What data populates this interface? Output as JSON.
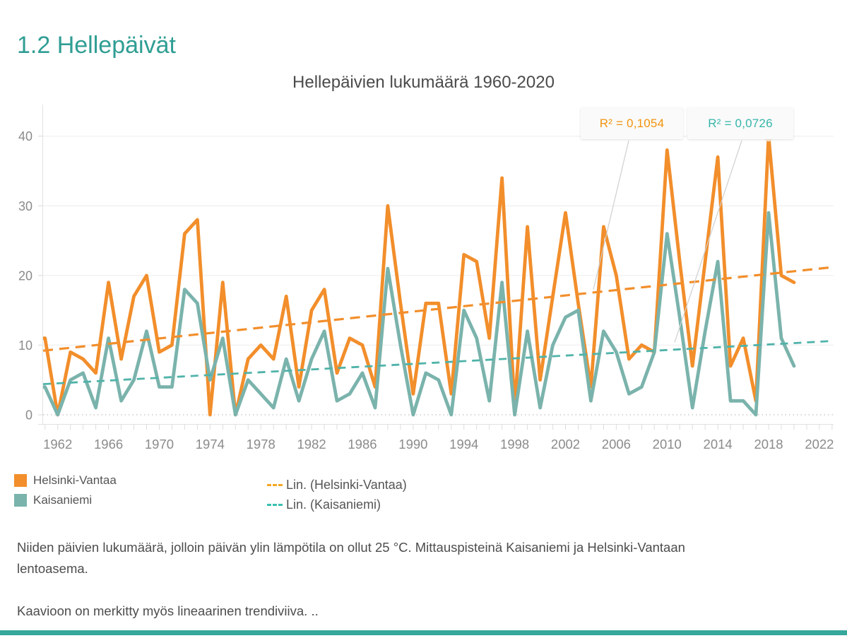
{
  "page": {
    "heading": "1.2 Hellepäivät"
  },
  "chart_data": {
    "type": "line",
    "title": "Hellepäivien lukumäärä 1960-2020",
    "xlabel": "",
    "ylabel": "",
    "grid": "horizontal",
    "ylim": [
      0,
      42
    ],
    "xlim": [
      1960.8,
      2023.6
    ],
    "y_ticks": [
      0,
      10,
      20,
      30,
      40
    ],
    "x_tick_labels": [
      1962,
      1966,
      1970,
      1974,
      1978,
      1982,
      1986,
      1990,
      1994,
      1998,
      2002,
      2006,
      2010,
      2014,
      2018,
      2022
    ],
    "x": [
      1960,
      1961,
      1962,
      1963,
      1964,
      1965,
      1966,
      1967,
      1968,
      1969,
      1970,
      1971,
      1972,
      1973,
      1974,
      1975,
      1976,
      1977,
      1978,
      1979,
      1980,
      1981,
      1982,
      1983,
      1984,
      1985,
      1986,
      1987,
      1988,
      1989,
      1990,
      1991,
      1992,
      1993,
      1994,
      1995,
      1996,
      1997,
      1998,
      1999,
      2000,
      2001,
      2002,
      2003,
      2004,
      2005,
      2006,
      2007,
      2008,
      2009,
      2010,
      2011,
      2012,
      2013,
      2014,
      2015,
      2016,
      2017,
      2018,
      2019,
      2020
    ],
    "series": [
      {
        "name": "Helsinki-Vantaa",
        "color": "#F28E2B",
        "values": [
          11,
          11,
          0,
          9,
          8,
          6,
          19,
          8,
          17,
          20,
          9,
          10,
          26,
          28,
          0,
          19,
          0,
          8,
          10,
          8,
          17,
          4,
          15,
          18,
          6,
          11,
          10,
          4,
          30,
          16,
          3,
          16,
          16,
          3,
          23,
          22,
          11,
          34,
          1,
          27,
          5,
          17,
          29,
          16,
          4,
          27,
          20,
          8,
          10,
          9,
          38,
          22,
          7,
          22,
          37,
          7,
          11,
          2,
          40,
          20,
          19
        ]
      },
      {
        "name": "Kaisaniemi",
        "color": "#7AB3AC",
        "values": [
          4,
          4,
          0,
          5,
          6,
          1,
          11,
          2,
          5,
          12,
          4,
          4,
          18,
          16,
          5,
          11,
          0,
          5,
          3,
          1,
          8,
          2,
          8,
          12,
          2,
          3,
          6,
          1,
          21,
          10,
          0,
          6,
          5,
          0,
          15,
          11,
          2,
          19,
          0,
          12,
          1,
          10,
          14,
          15,
          2,
          12,
          9,
          3,
          4,
          9,
          26,
          14,
          1,
          12,
          22,
          2,
          2,
          0,
          29,
          11,
          7
        ]
      }
    ],
    "trendlines": [
      {
        "name": "Lin. (Helsinki-Vantaa)",
        "color": "#F28E2B",
        "x1": 1960.85,
        "y1": 9.2,
        "x2": 2023.1,
        "y2": 21.2
      },
      {
        "name": "Lin. (Kaisaniemi)",
        "color": "#4FB3A9",
        "x1": 1960.85,
        "y1": 4.4,
        "x2": 2023.1,
        "y2": 10.6
      }
    ],
    "legend_position": "bottom"
  },
  "annotations": [
    {
      "label": "R² = 0,1054",
      "color": "#f2930d",
      "target": {
        "year": 2004.2,
        "value": 18.0
      }
    },
    {
      "label": "R² = 0,0726",
      "color": "#35b5a9",
      "target": {
        "year": 2010.6,
        "value": 10.4
      }
    }
  ],
  "highlight_dot": {
    "year": 2018,
    "value": 39.7,
    "color": "#FAEDDC"
  },
  "legend": {
    "items": [
      {
        "label": "Helsinki-Vantaa",
        "color": "#F28E2B"
      },
      {
        "label": "Kaisaniemi",
        "color": "#7AB3AC"
      }
    ],
    "trend_items": [
      {
        "label": "Lin. (Helsinki-Vantaa)",
        "color": "#F5A623"
      },
      {
        "label": "Lin. (Kaisaniemi)",
        "color": "#3BBFB2"
      }
    ]
  },
  "footer": {
    "paragraph1_line1": "Niiden päivien lukumäärä, jolloin päivän ylin lämpötila on ollut 25 °C. Mittauspisteinä Kaisaniemi ja Helsinki-Vantaan",
    "paragraph1_line2": "lentoasema.",
    "paragraph2": "Kaavioon on merkitty myös lineaarinen trendiviiva. .."
  }
}
